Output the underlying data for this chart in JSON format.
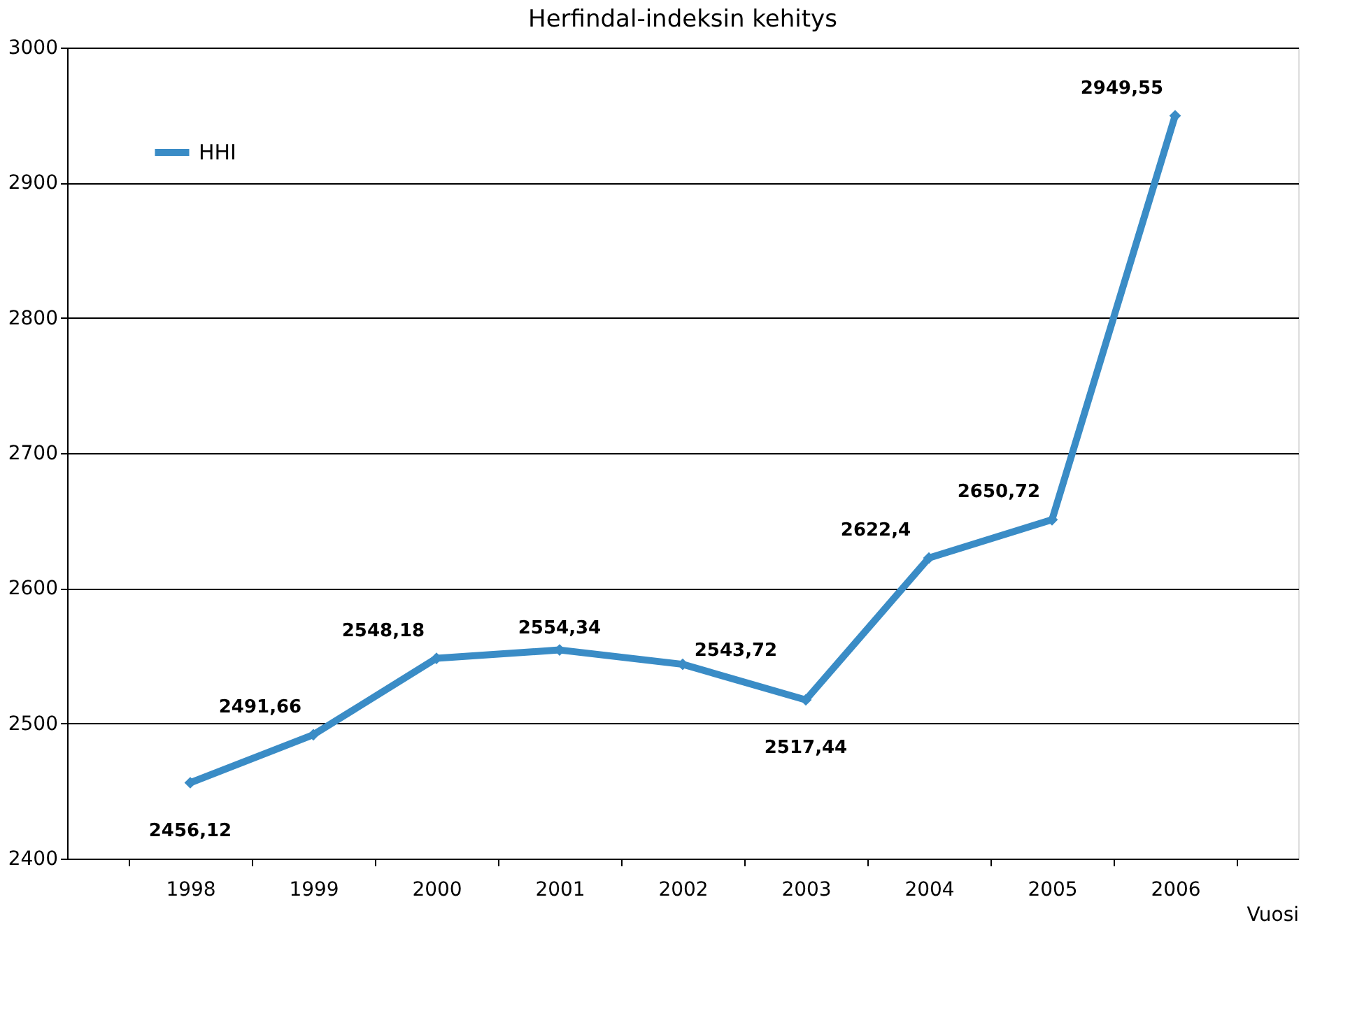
{
  "chart_data": {
    "type": "line",
    "title": "Herfindal-indeksin kehitys",
    "xlabel": "Vuosi",
    "categories": [
      "1998",
      "1999",
      "2000",
      "2001",
      "2002",
      "2003",
      "2004",
      "2005",
      "2006"
    ],
    "series": [
      {
        "name": "HHI",
        "color": "#3a8cc6",
        "values": [
          2456.12,
          2491.66,
          2548.18,
          2554.34,
          2543.72,
          2517.44,
          2622.4,
          2650.72,
          2949.55
        ],
        "value_labels": [
          "2456,12",
          "2491,66",
          "2548,18",
          "2554,34",
          "2543,72",
          "2517,44",
          "2622,4",
          "2650,72",
          "2949,55"
        ]
      }
    ],
    "ylim": [
      2400,
      3000
    ],
    "yticks": [
      2400,
      2500,
      2600,
      2700,
      2800,
      2900,
      3000
    ],
    "grid": "y",
    "legend": "top left",
    "marker": "diamond",
    "line_style": "solid"
  }
}
